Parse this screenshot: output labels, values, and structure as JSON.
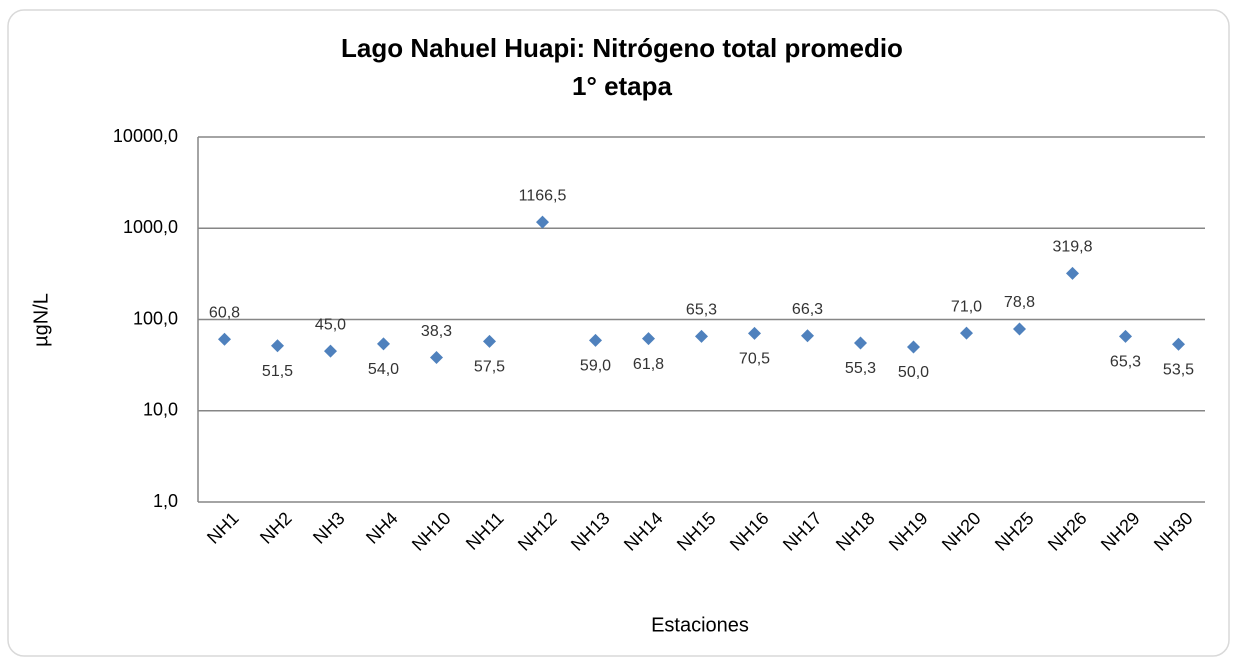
{
  "chart_data": {
    "type": "scatter",
    "title": "Lago Nahuel Huapi: Nitrógeno total promedio",
    "subtitle": "1° etapa",
    "x_label": "Estaciones",
    "y_label": "µgN/L",
    "categories": [
      "NH1",
      "NH2",
      "NH3",
      "NH4",
      "NH10",
      "NH11",
      "NH12",
      "NH13",
      "NH14",
      "NH15",
      "NH16",
      "NH17",
      "NH18",
      "NH19",
      "NH20",
      "NH25",
      "NH26",
      "NH29",
      "NH30"
    ],
    "values": [
      60.8,
      51.5,
      45.0,
      54.0,
      38.3,
      57.5,
      1166.5,
      59.0,
      61.8,
      65.3,
      70.5,
      66.3,
      55.3,
      50.0,
      71.0,
      78.8,
      319.8,
      65.3,
      53.5
    ],
    "value_labels": [
      "60,8",
      "51,5",
      "45,0",
      "54,0",
      "38,3",
      "57,5",
      "1166,5",
      "59,0",
      "61,8",
      "65,3",
      "70,5",
      "66,3",
      "55,3",
      "50,0",
      "71,0",
      "78,8",
      "319,8",
      "65,3",
      "53,5"
    ],
    "color": "#4f81bd",
    "log_scale": true,
    "grid": true,
    "ylim": [
      1,
      10000
    ],
    "yticks": [
      {
        "value": 1,
        "label": "1,0"
      },
      {
        "value": 10,
        "label": "10,0"
      },
      {
        "value": 100,
        "label": "100,0"
      },
      {
        "value": 1000,
        "label": "1000,0"
      },
      {
        "value": 10000,
        "label": "10000,0"
      }
    ]
  }
}
